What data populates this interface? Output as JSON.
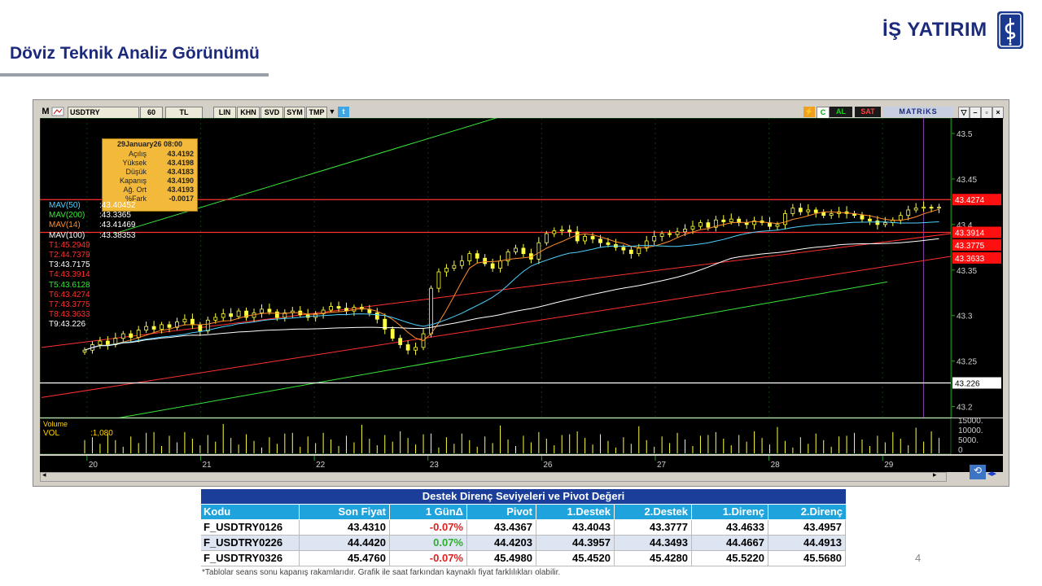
{
  "page": {
    "title": "Döviz Teknik Analiz Görünümü",
    "logo_text": "İŞ YATIRIM",
    "page_number": "4",
    "footnote": "*Tablolar seans sonu kapanış rakamlarıdır. Grafik ile saat farkından kaynaklı fiyat farklılıkları olabilir."
  },
  "toolbar": {
    "m_label": "M",
    "symbol": "USDTRY",
    "period": "60",
    "currency": "TL",
    "buttons": [
      "LIN",
      "KHN",
      "SVD",
      "SYM",
      "TMP"
    ],
    "al_label": "AL",
    "sat_label": "SAT",
    "brand": "MATRiKS",
    "colors": {
      "al": "#00a000",
      "sat": "#c00000"
    }
  },
  "info_box": {
    "date": "29January26 08:00",
    "rows": [
      {
        "label": "Açılış",
        "value": "43.4192"
      },
      {
        "label": "Yüksek",
        "value": "43.4198"
      },
      {
        "label": "Düşük",
        "value": "43.4183"
      },
      {
        "label": "Kapanış",
        "value": "43.4190"
      },
      {
        "label": "Ağ. Ort",
        "value": "43.4193"
      },
      {
        "label": "%Fark",
        "value": "-0.0017"
      }
    ]
  },
  "legend": [
    {
      "label": "MAV(50)",
      "value": ":43.40452",
      "color": "#4fd0ff"
    },
    {
      "label": "MAV(200)",
      "value": ":43.3365",
      "color": "#39e639"
    },
    {
      "label": "MAV(14)",
      "value": ":43.41469",
      "color": "#ff8c2a"
    },
    {
      "label": "MAV(100)",
      "value": ":43.38353",
      "color": "#ffffff"
    },
    {
      "label": "T1:45.2949",
      "value": "",
      "color": "#ff3030"
    },
    {
      "label": "T2:44.7379",
      "value": "",
      "color": "#ff3030"
    },
    {
      "label": "T3:43.7175",
      "value": "",
      "color": "#ffffff"
    },
    {
      "label": "T4:43.3914",
      "value": "",
      "color": "#ff3030"
    },
    {
      "label": "T5:43.6128",
      "value": "",
      "color": "#39e639"
    },
    {
      "label": "T6:43.4274",
      "value": "",
      "color": "#ff3030"
    },
    {
      "label": "T7:43.3775",
      "value": "",
      "color": "#ff3030"
    },
    {
      "label": "T8:43.3633",
      "value": "",
      "color": "#ff3030"
    },
    {
      "label": "T9:43.226",
      "value": "",
      "color": "#ffffff"
    }
  ],
  "volume": {
    "label": "Volume",
    "vol_label": "VOL",
    "vol_value": ":1,080",
    "axis_ticks": [
      "15000.",
      "10000.",
      "5000.",
      "0"
    ]
  },
  "chart_data": {
    "type": "candlestick",
    "symbol": "USDTRY",
    "interval": "60",
    "x_ticks": [
      "20",
      "21",
      "22",
      "23",
      "26",
      "27",
      "28",
      "29"
    ],
    "y_ticks": [
      43.5,
      43.45,
      43.4,
      43.35,
      43.3,
      43.25,
      43.2
    ],
    "y_tick_labels": [
      "43.5",
      "43.45",
      "43.4",
      "43.35",
      "43.3",
      "43.25",
      "43.2"
    ],
    "ylim": [
      43.188,
      43.517
    ],
    "price_labels": [
      {
        "value": 43.4274,
        "text": "43.4274",
        "style": "red"
      },
      {
        "value": 43.3914,
        "text": "43.3914",
        "style": "red"
      },
      {
        "value": 43.3775,
        "text": "43.3775",
        "style": "red"
      },
      {
        "value": 43.3633,
        "text": "43.3633",
        "style": "red"
      },
      {
        "value": 43.226,
        "text": "43.226",
        "style": "white"
      }
    ],
    "horizontal_lines": [
      {
        "value": 43.4274,
        "color": "#ff3030"
      },
      {
        "value": 43.3914,
        "color": "#ff3030"
      },
      {
        "value": 43.226,
        "color": "#ffffff"
      }
    ],
    "trend_lines": [
      {
        "name": "upper-green-channel",
        "from": [
          0.08,
          43.39
        ],
        "to": [
          0.51,
          43.52
        ],
        "color": "#39e639"
      },
      {
        "name": "red-trend-1",
        "from": [
          0.0,
          43.265
        ],
        "to": [
          1.0,
          43.39
        ],
        "color": "#ff3030"
      },
      {
        "name": "red-trend-2",
        "from": [
          0.0,
          43.21
        ],
        "to": [
          1.0,
          43.365
        ],
        "color": "#ff3030"
      },
      {
        "name": "lower-green-channel",
        "from": [
          0.07,
          43.185
        ],
        "to": [
          0.93,
          43.337
        ],
        "color": "#39e639"
      }
    ],
    "closes": [
      43.262,
      43.268,
      43.272,
      43.268,
      43.275,
      43.28,
      43.276,
      43.284,
      43.288,
      43.285,
      43.29,
      43.287,
      43.293,
      43.296,
      43.29,
      43.283,
      43.295,
      43.298,
      43.302,
      43.299,
      43.305,
      43.298,
      43.303,
      43.307,
      43.304,
      43.298,
      43.303,
      43.305,
      43.301,
      43.298,
      43.302,
      43.306,
      43.31,
      43.308,
      43.305,
      43.309,
      43.307,
      43.303,
      43.296,
      43.285,
      43.275,
      43.268,
      43.262,
      43.265,
      43.28,
      43.33,
      43.348,
      43.352,
      43.355,
      43.36,
      43.368,
      43.363,
      43.357,
      43.352,
      43.36,
      43.37,
      43.374,
      43.368,
      43.362,
      43.38,
      43.39,
      43.393,
      43.394,
      43.392,
      43.382,
      43.387,
      43.384,
      43.38,
      43.378,
      43.375,
      43.372,
      43.368,
      43.374,
      43.382,
      43.387,
      43.39,
      43.389,
      43.392,
      43.395,
      43.398,
      43.402,
      43.397,
      43.405,
      43.403,
      43.406,
      43.402,
      43.4,
      43.404,
      43.402,
      43.398,
      43.4,
      43.412,
      43.418,
      43.414,
      43.416,
      43.413,
      43.41,
      43.412,
      43.414,
      43.412,
      43.41,
      43.406,
      43.404,
      43.4,
      43.402,
      43.405,
      43.41,
      43.416,
      43.418,
      43.419,
      43.418,
      43.419
    ],
    "series": [
      {
        "name": "MAV(50)",
        "last": 43.40452,
        "color": "#4fd0ff"
      },
      {
        "name": "MAV(200)",
        "last": 43.3365,
        "color": "#39e639"
      },
      {
        "name": "MAV(14)",
        "last": 43.41469,
        "color": "#ff8c2a"
      },
      {
        "name": "MAV(100)",
        "last": 43.38353,
        "color": "#ffffff"
      }
    ]
  },
  "table": {
    "title": "Destek Direnç Seviyeleri ve Pivot Değeri",
    "headers": [
      "Kodu",
      "Son Fiyat",
      "1 GünΔ",
      "Pivot",
      "1.Destek",
      "2.Destek",
      "1.Direnç",
      "2.Direnç"
    ],
    "rows": [
      {
        "cells": [
          "F_USDTRY0126",
          "43.4310",
          "-0.07%",
          "43.4367",
          "43.4043",
          "43.3777",
          "43.4633",
          "43.4957"
        ],
        "change_color": "#e02020"
      },
      {
        "cells": [
          "F_USDTRY0226",
          "44.4420",
          "0.07%",
          "44.4203",
          "44.3957",
          "44.3493",
          "44.4667",
          "44.4913"
        ],
        "change_color": "#2bb02b"
      },
      {
        "cells": [
          "F_USDTRY0326",
          "45.4760",
          "-0.07%",
          "45.4980",
          "45.4520",
          "45.4280",
          "45.5220",
          "45.5680"
        ],
        "change_color": "#e02020"
      }
    ]
  }
}
